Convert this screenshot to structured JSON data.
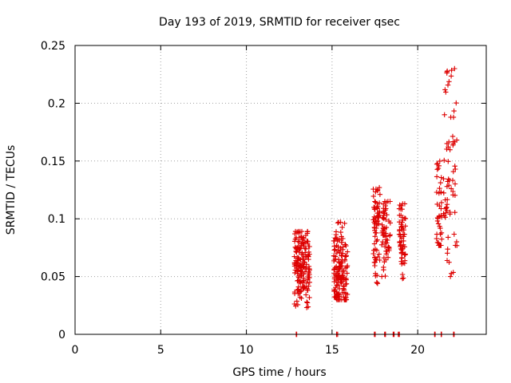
{
  "chart_data": {
    "type": "scatter",
    "title": "Day 193 of 2019, SRMTID for receiver qsec",
    "xlabel": "GPS time / hours",
    "ylabel": "SRMTID / TECUs",
    "xlim": [
      0,
      24
    ],
    "ylim": [
      0,
      0.25
    ],
    "xticks": [
      0,
      5,
      10,
      15,
      20
    ],
    "yticks": [
      0,
      0.05,
      0.1,
      0.15,
      0.2,
      0.25
    ],
    "xtick_labels": [
      "0",
      "5",
      "10",
      "15",
      "20"
    ],
    "ytick_labels": [
      "0",
      "0.05",
      "0.1",
      "0.15",
      "0.2",
      "0.25"
    ],
    "grid": true,
    "color": "#dd0000",
    "marker": "+",
    "clusters": [
      {
        "x_min": 12.8,
        "x_max": 13.7,
        "y_min": 0.023,
        "y_max": 0.089,
        "y_center": 0.06,
        "n": 170
      },
      {
        "x_min": 15.1,
        "x_max": 15.9,
        "y_min": 0.03,
        "y_max": 0.097,
        "y_center": 0.055,
        "n": 160
      },
      {
        "x_min": 17.4,
        "x_max": 17.8,
        "y_min": 0.044,
        "y_max": 0.127,
        "y_center": 0.09,
        "n": 70
      },
      {
        "x_min": 17.9,
        "x_max": 18.4,
        "y_min": 0.048,
        "y_max": 0.115,
        "y_center": 0.085,
        "n": 60
      },
      {
        "x_min": 18.9,
        "x_max": 19.3,
        "y_min": 0.048,
        "y_max": 0.113,
        "y_center": 0.085,
        "n": 60
      },
      {
        "x_min": 21.1,
        "x_max": 21.4,
        "y_min": 0.077,
        "y_max": 0.15,
        "y_center": 0.11,
        "n": 40
      },
      {
        "x_min": 21.5,
        "x_max": 22.3,
        "y_min": 0.05,
        "y_max": 0.23,
        "y_center": 0.14,
        "n": 70
      }
    ],
    "zero_points_x": [
      12.9,
      15.3,
      17.5,
      18.1,
      18.6,
      18.9,
      21.0,
      21.4,
      22.1
    ]
  }
}
